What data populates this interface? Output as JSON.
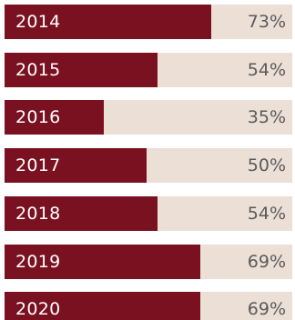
{
  "chart_data": {
    "type": "bar",
    "orientation": "horizontal",
    "categories": [
      "2014",
      "2015",
      "2016",
      "2017",
      "2018",
      "2019",
      "2020"
    ],
    "values": [
      73,
      54,
      35,
      50,
      54,
      69,
      69
    ],
    "value_labels": [
      "73%",
      "54%",
      "35%",
      "50%",
      "54%",
      "69%",
      "69%"
    ],
    "xlim": [
      0,
      100
    ],
    "colors": {
      "bar": "#7a1120",
      "track": "#ecdfd6",
      "category_text": "#ffffff",
      "value_text": "#5a5a5a"
    }
  }
}
